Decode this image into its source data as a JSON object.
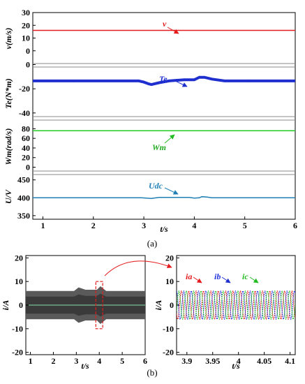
{
  "captions": {
    "a": "(a)",
    "b": "(b)"
  },
  "colors": {
    "v": "#e41a1c",
    "Te": "#1f2fcf",
    "Wm": "#22cc22",
    "Udc": "#1f7fb4",
    "ia": "#e41a1c",
    "ib": "#2233dd",
    "ic": "#22bb22",
    "zoom": "#e41a1c"
  },
  "chart_data": [
    {
      "type": "line",
      "ylabel": "v(m/s)",
      "xlim": [
        0.8,
        6
      ],
      "ylim": [
        -10,
        30
      ],
      "yticks": [
        "0",
        "10",
        "20",
        "30"
      ],
      "series": [
        {
          "name": "v",
          "x": [
            0.8,
            6
          ],
          "y": [
            16,
            16
          ]
        }
      ],
      "annotations": [
        {
          "text": "v",
          "series": "v"
        }
      ]
    },
    {
      "type": "line",
      "ylabel": "Te(N*m)",
      "xlim": [
        0.8,
        6
      ],
      "ylim": [
        -43,
        -2
      ],
      "yticks": [
        "0",
        "-20",
        "-40"
      ],
      "series": [
        {
          "name": "Te",
          "x": [
            0.8,
            2.9,
            3.0,
            3.1,
            3.15,
            3.3,
            3.5,
            3.8,
            4.0,
            4.05,
            4.1,
            4.2,
            4.35,
            4.6,
            6.0
          ],
          "y": [
            -13.5,
            -13.5,
            -14.5,
            -16,
            -16.5,
            -15,
            -13.5,
            -12.5,
            -12.5,
            -11.5,
            -10.5,
            -10.5,
            -12,
            -13.5,
            -13.5
          ]
        }
      ],
      "annotations": [
        {
          "text": "Te",
          "series": "Te"
        }
      ]
    },
    {
      "type": "line",
      "ylabel": "Wm(rad/s)",
      "xlim": [
        0.8,
        6
      ],
      "ylim": [
        -8,
        98
      ],
      "yticks": [
        "0",
        "20",
        "40",
        "60",
        "80"
      ],
      "series": [
        {
          "name": "Wm",
          "x": [
            0.8,
            6
          ],
          "y": [
            76,
            76
          ]
        }
      ],
      "annotations": [
        {
          "text": "Wm",
          "series": "Wm"
        }
      ]
    },
    {
      "type": "line",
      "ylabel": "U/V",
      "xlabel": "t/s",
      "xlim": [
        0.8,
        6
      ],
      "ylim": [
        340,
        465
      ],
      "xticks": [
        "1",
        "2",
        "3",
        "4",
        "5",
        "6"
      ],
      "yticks": [
        "350",
        "400",
        "450"
      ],
      "series": [
        {
          "name": "Udc",
          "x": [
            0.8,
            2.95,
            3.05,
            3.15,
            3.3,
            3.9,
            4.0,
            4.1,
            4.15,
            4.25,
            4.35,
            6.0
          ],
          "y": [
            400,
            400,
            399,
            398,
            401,
            401,
            399,
            400,
            403,
            402,
            400,
            400
          ]
        }
      ],
      "annotations": [
        {
          "text": "Udc",
          "series": "Udc"
        }
      ]
    },
    {
      "type": "line",
      "ylabel": "i/A",
      "xlabel": "t/s",
      "xlim": [
        0.8,
        6
      ],
      "ylim": [
        -21,
        21
      ],
      "xticks": [
        "1",
        "2",
        "3",
        "4",
        "5",
        "6"
      ],
      "yticks": [
        "-20",
        "-10",
        "0",
        "10",
        "20"
      ],
      "series": [
        {
          "name": "envelope_upper",
          "x": [
            0.8,
            2.9,
            3.1,
            3.4,
            3.9,
            4.05,
            4.3,
            6.0
          ],
          "y": [
            6,
            6,
            7.5,
            6.5,
            6.5,
            8,
            6,
            6
          ]
        },
        {
          "name": "envelope_lower",
          "x": [
            0.8,
            2.9,
            3.1,
            3.4,
            3.9,
            4.05,
            4.3,
            6.0
          ],
          "y": [
            -6,
            -6,
            -7.5,
            -6.5,
            -6.5,
            -8,
            -6,
            -6
          ]
        }
      ],
      "zoom_box": {
        "x": [
          3.85,
          4.15
        ],
        "y": [
          -10,
          10
        ]
      }
    },
    {
      "type": "line",
      "ylabel": "i/A",
      "xlabel": "t/s",
      "xlim": [
        3.88,
        4.11
      ],
      "ylim": [
        -21,
        21
      ],
      "xticks": [
        "3.9",
        "3.95",
        "4",
        "4.05",
        "4.1"
      ],
      "yticks": [
        "-20",
        "-10",
        "0",
        "10",
        "20"
      ],
      "amplitude": 6,
      "period": 0.0143,
      "series": [
        {
          "name": "ia",
          "phase_deg": 0
        },
        {
          "name": "ib",
          "phase_deg": -120
        },
        {
          "name": "ic",
          "phase_deg": 120
        }
      ],
      "annotations": [
        {
          "text": "ia",
          "series": "ia"
        },
        {
          "text": "ib",
          "series": "ib"
        },
        {
          "text": "ic",
          "series": "ic"
        }
      ]
    }
  ]
}
